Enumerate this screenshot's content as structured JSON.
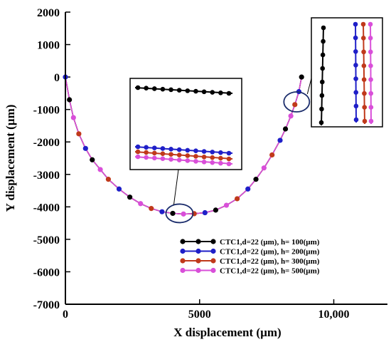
{
  "chart_data": {
    "type": "line",
    "title": "",
    "xlabel": "X  displacement (µm)",
    "ylabel": "Y displacement (µm)",
    "xlim": [
      0,
      12000
    ],
    "ylim": [
      -7000,
      2000
    ],
    "x_ticks": [
      0,
      5000,
      10000
    ],
    "x_tick_labels": [
      "0",
      "5000",
      "10,000"
    ],
    "y_ticks": [
      2000,
      1000,
      0,
      -1000,
      -2000,
      -3000,
      -4000,
      -5000,
      -6000,
      -7000
    ],
    "y_tick_labels": [
      "2000",
      "1000",
      "0",
      "-1000",
      "-2000",
      "-3000",
      "-4000",
      "-5000",
      "-6000",
      "-7000"
    ],
    "grid": false,
    "legend_position": "lower-right",
    "x": [
      0,
      150,
      300,
      500,
      750,
      1000,
      1300,
      1600,
      2000,
      2400,
      2800,
      3200,
      3600,
      4000,
      4400,
      4800,
      5200,
      5600,
      6000,
      6400,
      6800,
      7100,
      7400,
      7700,
      8000,
      8200,
      8400,
      8550,
      8700,
      8800
    ],
    "y": [
      0,
      -700,
      -1250,
      -1750,
      -2200,
      -2550,
      -2850,
      -3150,
      -3450,
      -3700,
      -3900,
      -4050,
      -4150,
      -4200,
      -4220,
      -4210,
      -4180,
      -4100,
      -3950,
      -3750,
      -3450,
      -3150,
      -2800,
      -2400,
      -1950,
      -1600,
      -1200,
      -850,
      -450,
      0
    ],
    "series": [
      {
        "name": "CTC1,d=22 (µm), h= 100(µm)",
        "color": "#000000"
      },
      {
        "name": "CTC1,d=22 (µm), h= 200(µm)",
        "color": "#1f1fc8"
      },
      {
        "name": "CTC1,d=22 (µm), h= 300(µm)",
        "color": "#c0391b"
      },
      {
        "name": "CTC1,d=22 (µm), h= 500(µm)",
        "color": "#d94fd9"
      }
    ],
    "annotations": [
      {
        "type": "zoom-ellipse",
        "target": "bottom of trajectory",
        "x": 4250,
        "y": -4200
      },
      {
        "type": "zoom-ellipse",
        "target": "end of trajectory",
        "x": 8750,
        "y": -700
      }
    ]
  }
}
